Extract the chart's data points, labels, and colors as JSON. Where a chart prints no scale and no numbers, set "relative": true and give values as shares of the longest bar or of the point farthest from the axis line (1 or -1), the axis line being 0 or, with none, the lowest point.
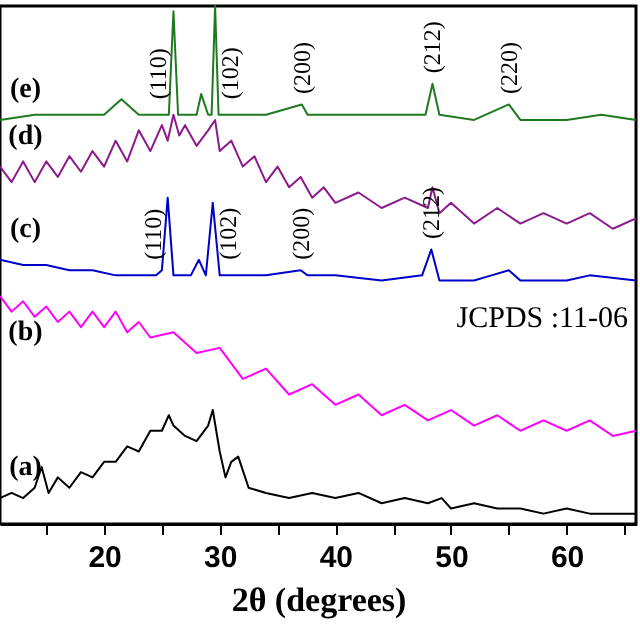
{
  "chart_data": {
    "type": "line",
    "relative": true,
    "xlabel": "2θ (degrees)",
    "xlim": [
      11,
      66
    ],
    "xticks": [
      {
        "value": 15,
        "label": null
      },
      20,
      {
        "value": 25,
        "label": null
      },
      30,
      {
        "value": 35,
        "label": null
      },
      40,
      {
        "value": 45,
        "label": null
      },
      50,
      {
        "value": 55,
        "label": null
      },
      60,
      {
        "value": 65,
        "label": null
      }
    ],
    "legend": false,
    "grid": false,
    "marker": "none",
    "line_style": "solid",
    "series": [
      {
        "name": "(e)",
        "color": "#1f7a1f",
        "x": [
          11,
          14,
          17,
          20,
          21.5,
          23,
          25,
          25.6,
          26,
          26.4,
          28,
          28.4,
          29,
          29.3,
          29.6,
          29.9,
          31,
          34,
          37.1,
          37.6,
          40,
          44,
          47.8,
          48.4,
          49,
          52,
          55,
          56,
          60,
          63,
          66
        ],
        "values": [
          0.78,
          0.79,
          0.79,
          0.79,
          0.82,
          0.79,
          0.79,
          0.79,
          0.99,
          0.79,
          0.79,
          0.83,
          0.79,
          0.79,
          1.0,
          0.79,
          0.79,
          0.79,
          0.81,
          0.79,
          0.79,
          0.79,
          0.79,
          0.85,
          0.79,
          0.78,
          0.81,
          0.78,
          0.78,
          0.79,
          0.78
        ]
      },
      {
        "name": "(d)",
        "color": "#8b1a8b",
        "x": [
          11,
          12,
          13,
          14,
          15,
          16,
          17,
          18,
          19,
          20,
          21,
          22,
          23,
          24,
          25,
          25.5,
          26,
          26.5,
          27,
          28,
          29,
          29.6,
          30,
          31,
          32,
          33,
          34,
          35,
          36,
          37,
          38,
          39,
          40,
          42,
          44,
          46,
          48,
          48.4,
          49,
          50,
          52,
          54,
          56,
          58,
          60,
          62,
          64,
          66
        ],
        "values": [
          0.69,
          0.66,
          0.7,
          0.66,
          0.7,
          0.67,
          0.71,
          0.68,
          0.72,
          0.69,
          0.74,
          0.7,
          0.76,
          0.72,
          0.77,
          0.74,
          0.79,
          0.75,
          0.77,
          0.73,
          0.76,
          0.78,
          0.72,
          0.74,
          0.69,
          0.71,
          0.66,
          0.69,
          0.65,
          0.67,
          0.63,
          0.65,
          0.62,
          0.64,
          0.61,
          0.63,
          0.61,
          0.65,
          0.6,
          0.62,
          0.58,
          0.61,
          0.58,
          0.6,
          0.58,
          0.6,
          0.57,
          0.59
        ]
      },
      {
        "name": "(c)",
        "color": "#0000cc",
        "x": [
          11,
          13,
          15,
          17,
          19,
          21,
          23,
          24.5,
          25,
          25.5,
          26,
          26.5,
          27.5,
          28.2,
          28.8,
          29.4,
          30,
          31,
          34,
          37,
          37.6,
          40,
          44,
          47.5,
          48.3,
          49,
          52,
          53.5,
          55,
          56,
          60,
          62,
          66
        ],
        "values": [
          0.51,
          0.5,
          0.5,
          0.49,
          0.49,
          0.48,
          0.48,
          0.48,
          0.49,
          0.63,
          0.48,
          0.48,
          0.48,
          0.51,
          0.48,
          0.62,
          0.48,
          0.48,
          0.48,
          0.49,
          0.48,
          0.48,
          0.47,
          0.48,
          0.53,
          0.47,
          0.47,
          0.48,
          0.49,
          0.47,
          0.47,
          0.48,
          0.47
        ]
      },
      {
        "name": "(b)",
        "color": "#ff00ff",
        "x": [
          11,
          12,
          13,
          14,
          15,
          16,
          17,
          18,
          19,
          20,
          21,
          22,
          23,
          24,
          26,
          28,
          30,
          32,
          34,
          36,
          38,
          40,
          42,
          44,
          46,
          48,
          50,
          52,
          54,
          56,
          58,
          60,
          62,
          64,
          66
        ],
        "values": [
          0.44,
          0.41,
          0.43,
          0.4,
          0.42,
          0.39,
          0.41,
          0.38,
          0.41,
          0.38,
          0.41,
          0.37,
          0.39,
          0.36,
          0.37,
          0.33,
          0.34,
          0.28,
          0.3,
          0.25,
          0.27,
          0.23,
          0.25,
          0.21,
          0.23,
          0.2,
          0.22,
          0.19,
          0.21,
          0.18,
          0.2,
          0.18,
          0.2,
          0.17,
          0.18
        ]
      },
      {
        "name": "(a)",
        "color": "#000000",
        "x": [
          11,
          12,
          13,
          14,
          14.6,
          15.2,
          16,
          17,
          18,
          19,
          20,
          21,
          22,
          23,
          24,
          25,
          25.6,
          26,
          27,
          28,
          29,
          29.4,
          30,
          30.5,
          31,
          31.6,
          32.5,
          34,
          36,
          38,
          40,
          42,
          44,
          46,
          48,
          49.2,
          50,
          52,
          54,
          56,
          58,
          60,
          62,
          64,
          66
        ],
        "values": [
          0.05,
          0.06,
          0.05,
          0.07,
          0.11,
          0.06,
          0.09,
          0.07,
          0.1,
          0.09,
          0.12,
          0.12,
          0.15,
          0.14,
          0.18,
          0.18,
          0.21,
          0.19,
          0.17,
          0.16,
          0.19,
          0.22,
          0.14,
          0.09,
          0.12,
          0.13,
          0.07,
          0.06,
          0.05,
          0.06,
          0.05,
          0.06,
          0.04,
          0.05,
          0.04,
          0.05,
          0.03,
          0.04,
          0.03,
          0.03,
          0.02,
          0.03,
          0.02,
          0.02,
          0.02
        ]
      }
    ],
    "annotations": [
      {
        "text": "(110)",
        "x": 26,
        "y": 0.99
      },
      {
        "text": "(102)",
        "x": 29.6,
        "y": 1.0
      },
      {
        "text": "(200)",
        "x": 37.1,
        "y": 0.81
      },
      {
        "text": "(212)",
        "x": 48.4,
        "y": 0.85
      },
      {
        "text": "(220)",
        "x": 55,
        "y": 0.81
      },
      {
        "text": "(110)",
        "x": 25.5,
        "y": 0.63
      },
      {
        "text": "(102)",
        "x": 29.4,
        "y": 0.62
      },
      {
        "text": "(200)",
        "x": 37,
        "y": 0.49
      },
      {
        "text": "(212)",
        "x": 48.3,
        "y": 0.53
      },
      "JCPDS :11-06"
    ]
  }
}
